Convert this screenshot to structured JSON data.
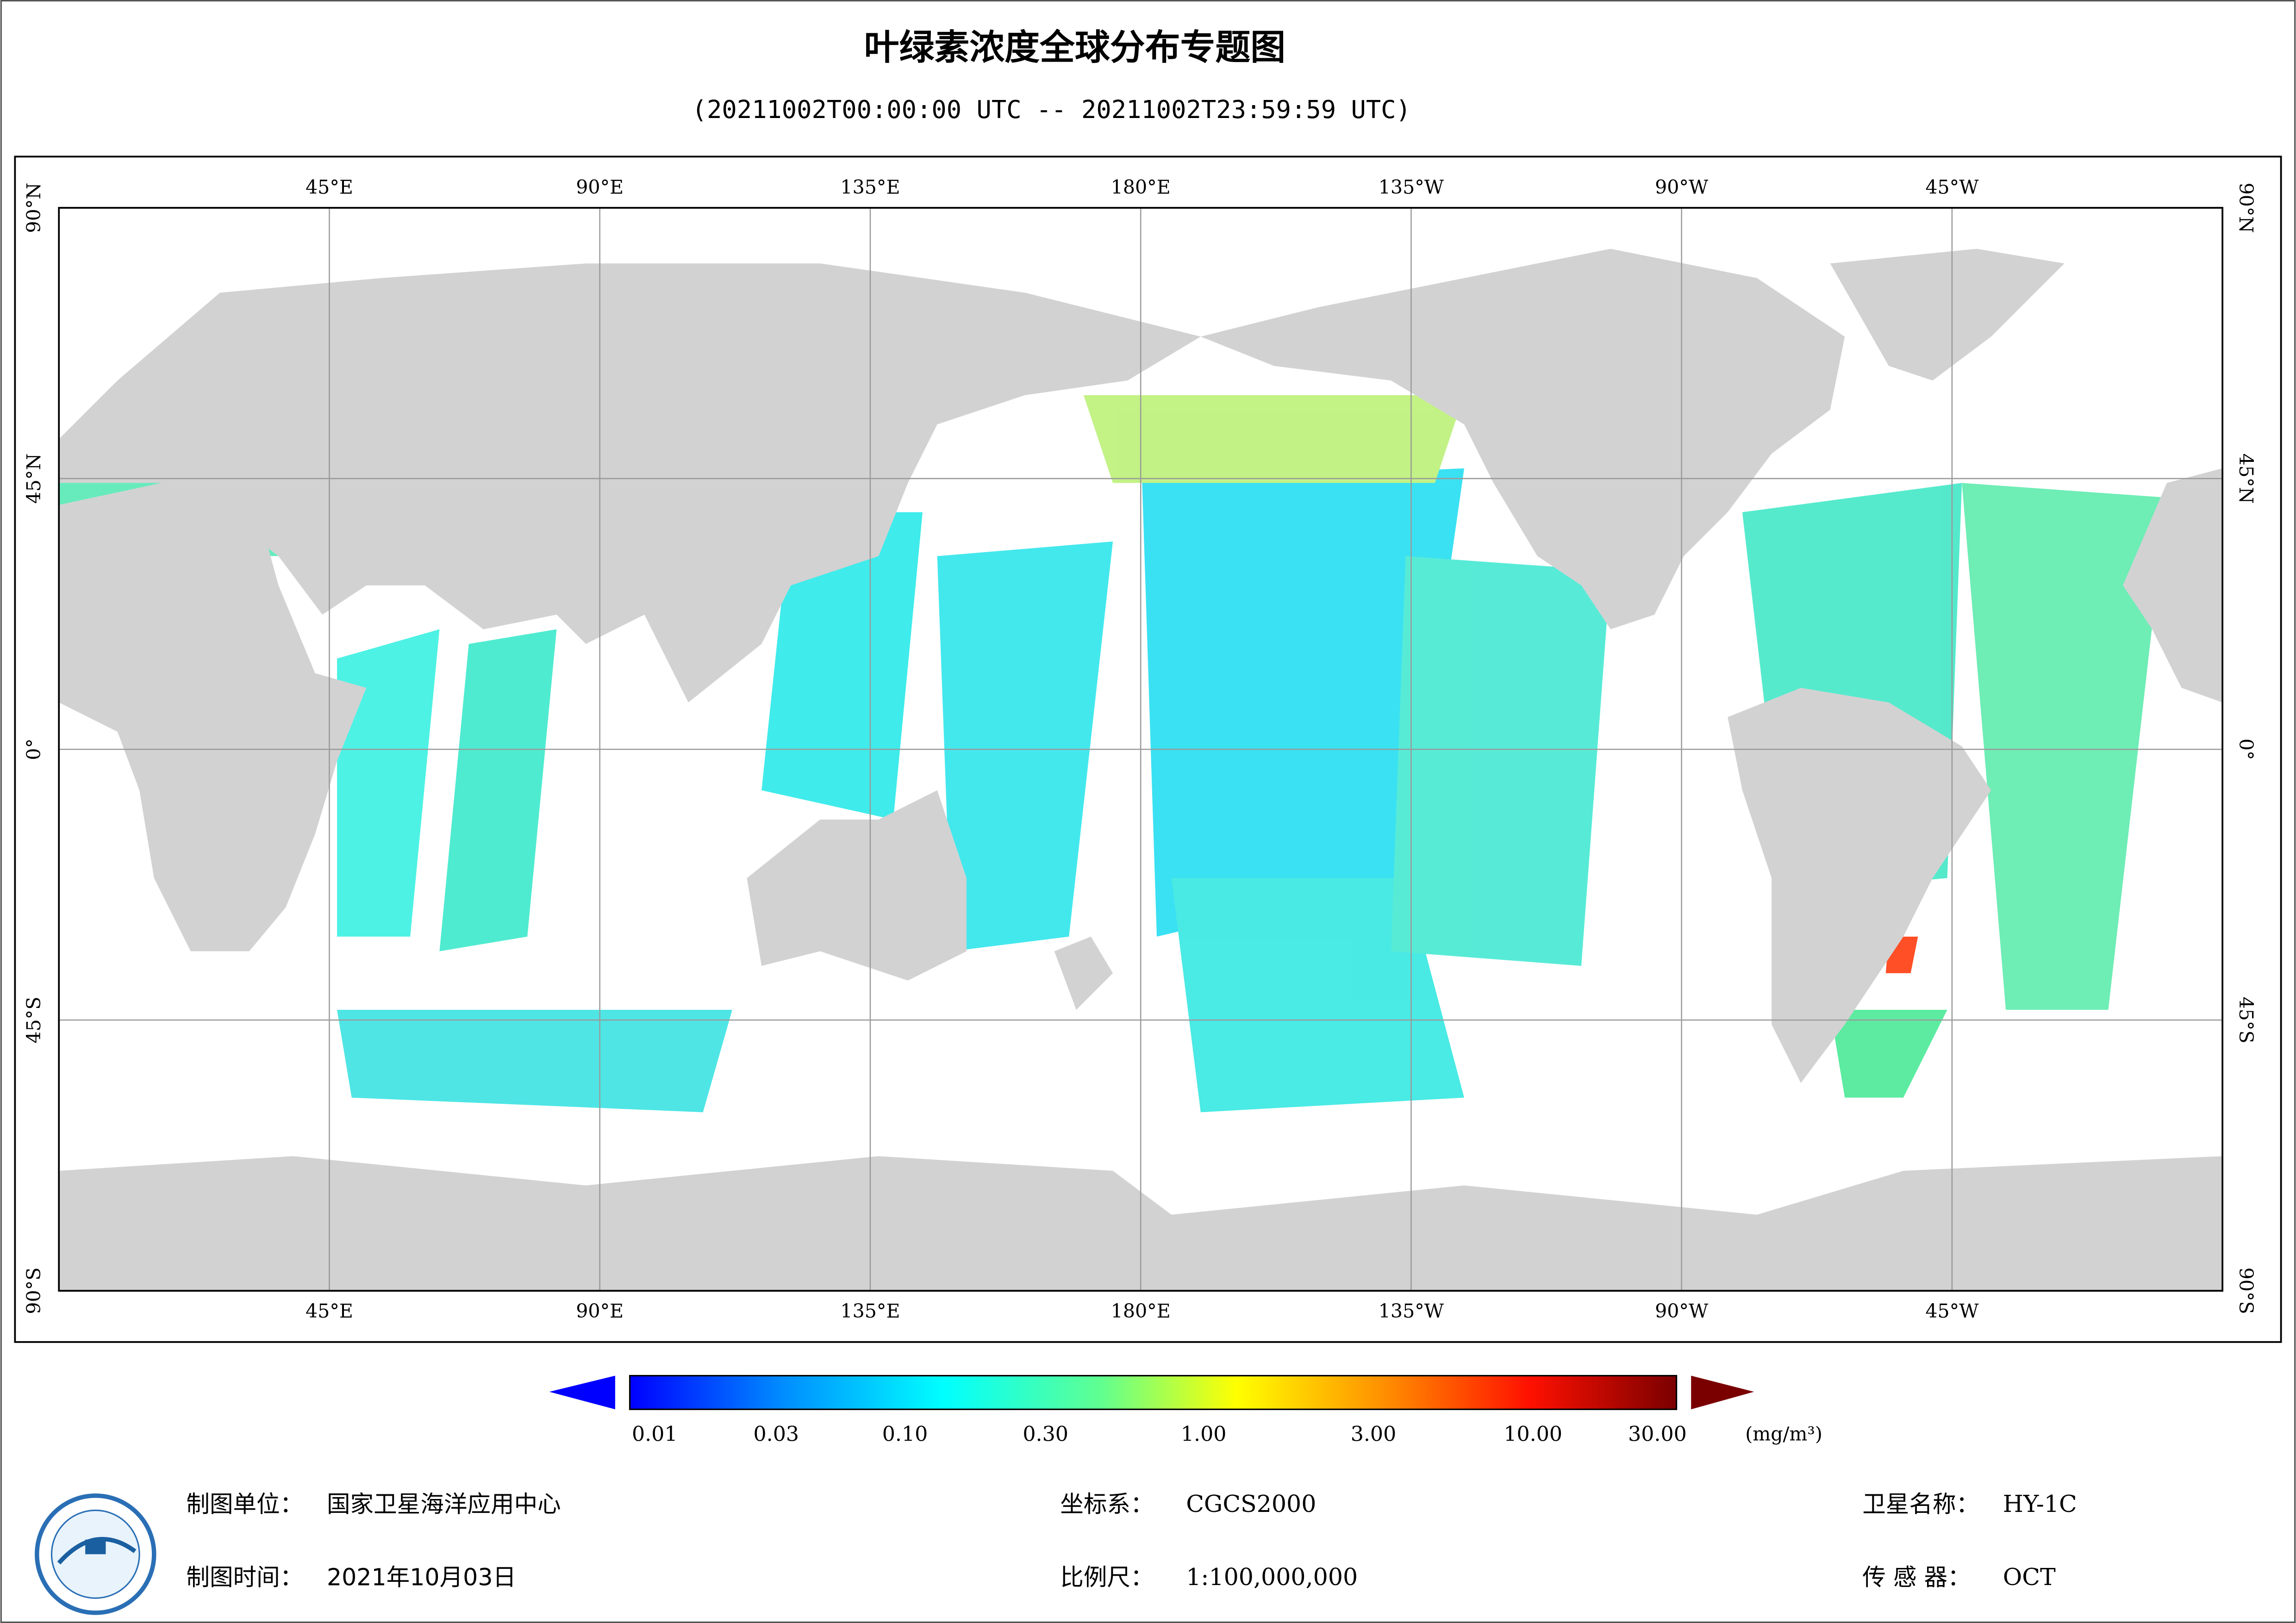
{
  "header": {
    "title": "叶绿素浓度全球分布专题图",
    "subtitle": "(20211002T00:00:00 UTC -- 20211002T23:59:59 UTC)"
  },
  "map": {
    "lon_labels": [
      "45°E",
      "90°E",
      "135°E",
      "180°E",
      "135°W",
      "90°W",
      "45°W"
    ],
    "lat_labels": [
      "90°N",
      "45°N",
      "0°",
      "45°S",
      "90°S"
    ]
  },
  "colorbar": {
    "labels": [
      "0.01",
      "0.03",
      "0.10",
      "0.30",
      "1.00",
      "3.00",
      "10.00",
      "30.00"
    ],
    "unit": "(mg/m³)"
  },
  "footer": {
    "unit_label": "制图单位：",
    "unit": "国家卫星海洋应用中心",
    "time_label": "制图时间：",
    "time": "2021年10月03日",
    "crs_label": "坐标系：",
    "crs": "CGCS2000",
    "scale_label": "比例尺：",
    "scale": "1:100,000,000",
    "satellite_label": "卫星名称：",
    "satellite": "HY-1C",
    "sensor_label": "传 感 器：",
    "sensor": "OCT"
  }
}
